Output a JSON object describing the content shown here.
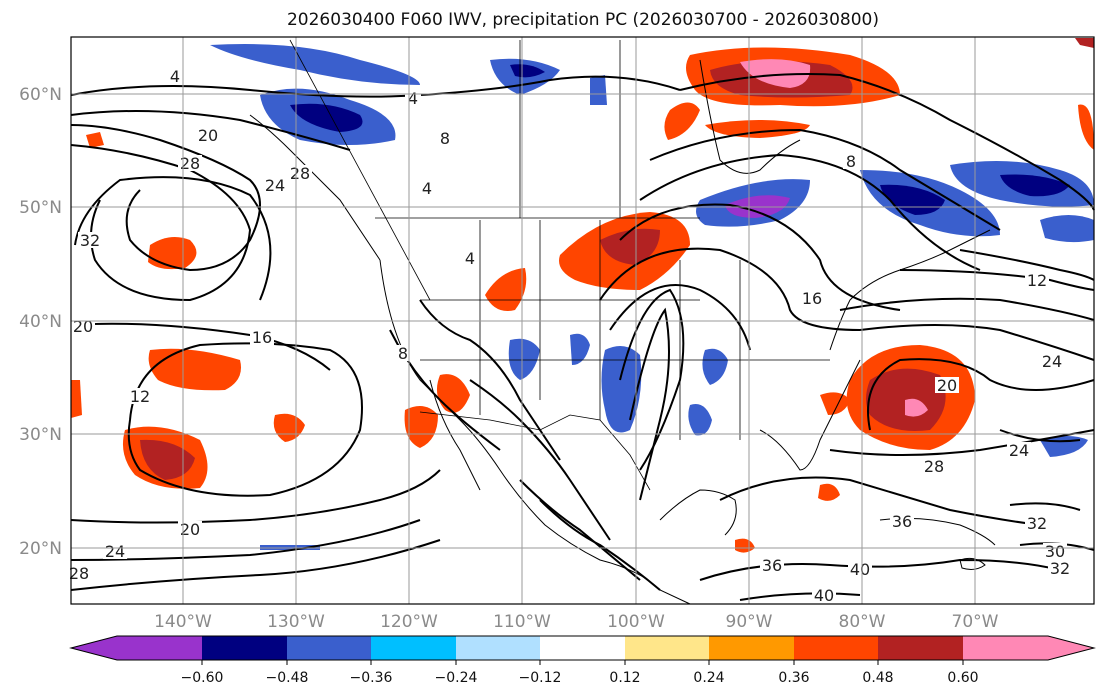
{
  "title": "2026030400 F060 IWV, precipitation PC (2026030700 - 2026030800)",
  "map": {
    "lon_labels": [
      "140°W",
      "130°W",
      "120°W",
      "110°W",
      "100°W",
      "90°W",
      "80°W",
      "70°W"
    ],
    "lat_labels": [
      "60°N",
      "50°N",
      "40°N",
      "30°N",
      "20°N"
    ],
    "contour_labels": [
      "4",
      "4",
      "8",
      "4",
      "4",
      "8",
      "20",
      "28",
      "24",
      "32",
      "16",
      "12",
      "20",
      "24",
      "28",
      "16",
      "12",
      "20",
      "24",
      "28",
      "24",
      "32",
      "36",
      "30",
      "32",
      "36",
      "40",
      "40",
      "8",
      "20",
      "28"
    ]
  },
  "colorbar": {
    "tick_labels": [
      "−0.60",
      "−0.48",
      "−0.36",
      "−0.24",
      "−0.12",
      "0.12",
      "0.24",
      "0.36",
      "0.48",
      "0.60"
    ],
    "colors": [
      "#9933cc",
      "#000080",
      "#3a5fcd",
      "#00bfff",
      "#b0e0ff",
      "#ffffff",
      "#ffe68a",
      "#ff9900",
      "#ff4500",
      "#b22222",
      "#ff88b5"
    ]
  }
}
